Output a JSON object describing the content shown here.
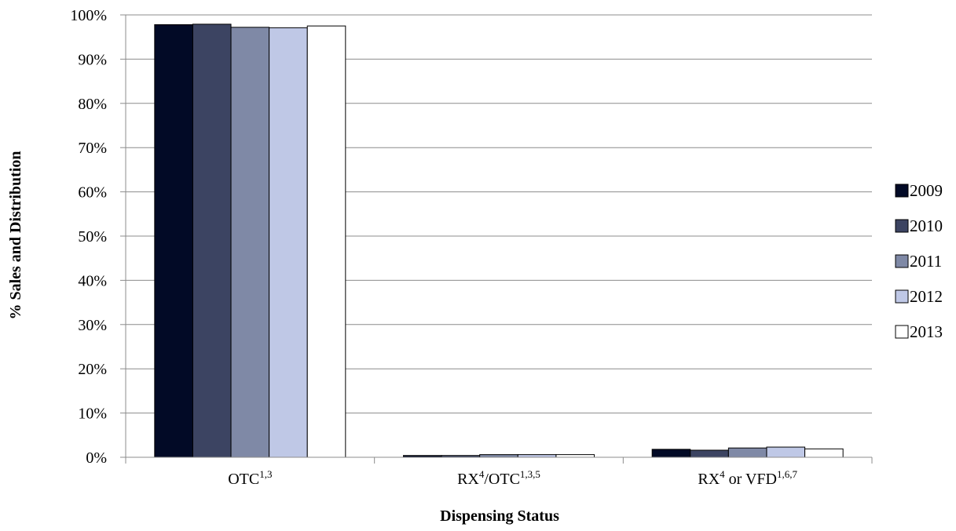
{
  "chart_data": {
    "type": "bar",
    "title": "",
    "xlabel": "Dispensing Status",
    "ylabel": "% Sales and Distribution",
    "ylim": [
      0,
      100
    ],
    "yticks": [
      "0%",
      "10%",
      "20%",
      "30%",
      "40%",
      "50%",
      "60%",
      "70%",
      "80%",
      "90%",
      "100%"
    ],
    "grid": true,
    "legend_position": "right",
    "categories": [
      {
        "parts": [
          {
            "text": "OTC",
            "sup": false
          },
          {
            "text": "1,3",
            "sup": true
          }
        ]
      },
      {
        "parts": [
          {
            "text": "RX",
            "sup": false
          },
          {
            "text": "4",
            "sup": true
          },
          {
            "text": "/OTC",
            "sup": false
          },
          {
            "text": "1,3,5",
            "sup": true
          }
        ]
      },
      {
        "parts": [
          {
            "text": "RX",
            "sup": false
          },
          {
            "text": "4",
            "sup": true
          },
          {
            "text": " or VFD",
            "sup": false
          },
          {
            "text": "1,6,7",
            "sup": true
          }
        ]
      }
    ],
    "series": [
      {
        "name": "2009",
        "color": "#020A26",
        "values": [
          97.8,
          0.4,
          1.8
        ]
      },
      {
        "name": "2010",
        "color": "#3C4462",
        "values": [
          97.9,
          0.4,
          1.6
        ]
      },
      {
        "name": "2011",
        "color": "#7F89A6",
        "values": [
          97.2,
          0.6,
          2.1
        ]
      },
      {
        "name": "2012",
        "color": "#BFC8E6",
        "values": [
          97.1,
          0.6,
          2.3
        ]
      },
      {
        "name": "2013",
        "color": "#FFFFFF",
        "values": [
          97.5,
          0.6,
          1.9
        ]
      }
    ]
  }
}
